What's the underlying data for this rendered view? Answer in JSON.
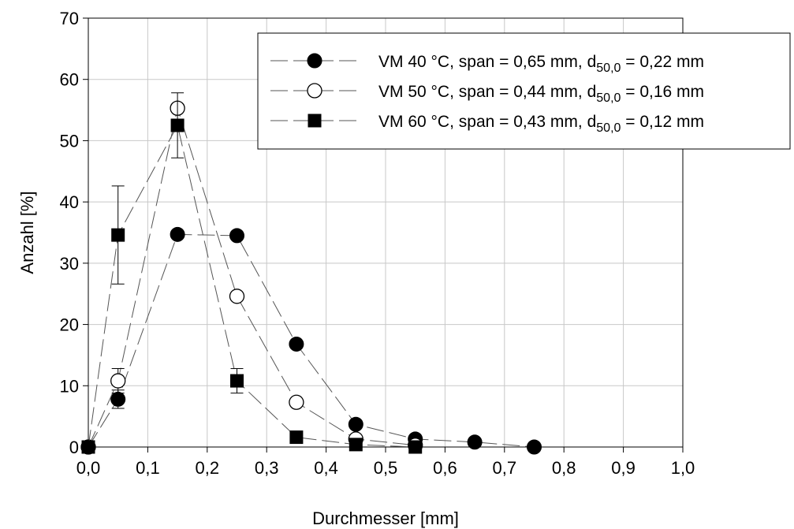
{
  "chart_data": {
    "type": "line",
    "title": "",
    "xlabel": "Durchmesser [mm]",
    "ylabel": "Anzahl [%]",
    "xlim": [
      0,
      1.0
    ],
    "ylim": [
      0,
      70
    ],
    "xticks": [
      "0,0",
      "0,1",
      "0,2",
      "0,3",
      "0,4",
      "0,5",
      "0,6",
      "0,7",
      "0,8",
      "0,9",
      "1,0"
    ],
    "yticks": [
      "0",
      "10",
      "20",
      "30",
      "40",
      "50",
      "60",
      "70"
    ],
    "grid": true,
    "legend_position": "top-right",
    "series": [
      {
        "name": "VM 40 °C, span = 0,65 mm, d50,0 = 0,22 mm",
        "legend_main": "VM 40 °C, span = 0,65 mm, d",
        "legend_sub": "50,0",
        "legend_tail": " = 0,22 mm",
        "marker": "filled-circle",
        "x": [
          0.0,
          0.05,
          0.15,
          0.25,
          0.35,
          0.45,
          0.55,
          0.65,
          0.75
        ],
        "y": [
          0.0,
          7.8,
          34.7,
          34.5,
          16.8,
          3.7,
          1.3,
          0.8,
          0.0
        ],
        "err": [
          0,
          1.5,
          0,
          0,
          0,
          0,
          0,
          0,
          0
        ]
      },
      {
        "name": "VM 50 °C, span = 0,44 mm, d50,0 = 0,16 mm",
        "legend_main": "VM 50 °C, span = 0,44 mm, d",
        "legend_sub": "50,0",
        "legend_tail": " = 0,16 mm",
        "marker": "open-circle",
        "x": [
          0.0,
          0.05,
          0.15,
          0.25,
          0.35,
          0.45,
          0.55
        ],
        "y": [
          0.0,
          10.8,
          55.3,
          24.6,
          7.3,
          1.3,
          0.3
        ],
        "err": [
          0,
          2.0,
          0,
          0,
          0,
          0,
          0
        ]
      },
      {
        "name": "VM 60 °C, span = 0,43 mm, d50,0 = 0,12 mm",
        "legend_main": "VM 60 °C, span = 0,43 mm, d",
        "legend_sub": "50,0",
        "legend_tail": " = 0,12 mm",
        "marker": "filled-square",
        "x": [
          0.0,
          0.05,
          0.15,
          0.25,
          0.35,
          0.45,
          0.55
        ],
        "y": [
          0.0,
          34.6,
          52.5,
          10.8,
          1.6,
          0.4,
          0.0
        ],
        "err": [
          0,
          8.0,
          5.3,
          2.0,
          0,
          0,
          0
        ]
      }
    ]
  }
}
